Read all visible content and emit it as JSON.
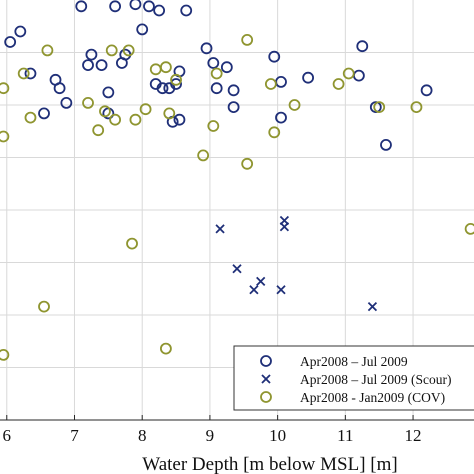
{
  "chart_data": {
    "type": "scatter",
    "xlabel": "Water Depth [m below MSL] [m]",
    "ylabel": "",
    "xlim": [
      5.9,
      12.9
    ],
    "ylim": [
      0,
      1
    ],
    "xticks": [
      6,
      7,
      8,
      9,
      10,
      11,
      12
    ],
    "grid": true,
    "legend_position": "bottom-right",
    "series": [
      {
        "name": "Apr2008 – Jul 2009",
        "marker": "circle",
        "color": "#1f2f78",
        "points": [
          [
            6.35,
            0.825
          ],
          [
            6.55,
            0.73
          ],
          [
            6.72,
            0.81
          ],
          [
            6.78,
            0.79
          ],
          [
            6.88,
            0.755
          ],
          [
            7.1,
            0.985
          ],
          [
            7.2,
            0.845
          ],
          [
            7.25,
            0.87
          ],
          [
            7.4,
            0.845
          ],
          [
            7.5,
            0.73
          ],
          [
            7.5,
            0.78
          ],
          [
            7.6,
            0.985
          ],
          [
            7.7,
            0.85
          ],
          [
            7.75,
            0.87
          ],
          [
            7.9,
            0.99
          ],
          [
            8.0,
            0.93
          ],
          [
            8.1,
            0.985
          ],
          [
            8.25,
            0.975
          ],
          [
            8.2,
            0.8
          ],
          [
            8.3,
            0.79
          ],
          [
            8.4,
            0.79
          ],
          [
            8.5,
            0.8
          ],
          [
            8.55,
            0.83
          ],
          [
            8.55,
            0.715
          ],
          [
            8.45,
            0.71
          ],
          [
            8.65,
            0.975
          ],
          [
            8.95,
            0.885
          ],
          [
            9.05,
            0.85
          ],
          [
            9.1,
            0.79
          ],
          [
            9.25,
            0.84
          ],
          [
            9.35,
            0.785
          ],
          [
            9.35,
            0.745
          ],
          [
            9.95,
            0.865
          ],
          [
            10.05,
            0.805
          ],
          [
            10.05,
            0.72
          ],
          [
            10.45,
            0.815
          ],
          [
            11.2,
            0.82
          ],
          [
            11.25,
            0.89
          ],
          [
            11.45,
            0.745
          ],
          [
            11.6,
            0.655
          ],
          [
            12.2,
            0.785
          ],
          [
            6.2,
            0.925
          ],
          [
            6.05,
            0.9
          ]
        ]
      },
      {
        "name": "Apr2008 – Jul 2009 (Scour)",
        "marker": "x",
        "color": "#1f2f78",
        "points": [
          [
            9.15,
            0.455
          ],
          [
            9.4,
            0.36
          ],
          [
            9.65,
            0.31
          ],
          [
            9.75,
            0.33
          ],
          [
            10.05,
            0.31
          ],
          [
            10.1,
            0.475
          ],
          [
            10.1,
            0.46
          ],
          [
            11.4,
            0.27
          ]
        ]
      },
      {
        "name": "Apr2008 - Jan2009 (COV)",
        "marker": "circle",
        "color": "#8f9530",
        "points": [
          [
            5.95,
            0.79
          ],
          [
            5.95,
            0.675
          ],
          [
            5.95,
            0.155
          ],
          [
            6.25,
            0.825
          ],
          [
            6.35,
            0.72
          ],
          [
            6.55,
            0.27
          ],
          [
            6.6,
            0.88
          ],
          [
            7.2,
            0.755
          ],
          [
            7.35,
            0.69
          ],
          [
            7.45,
            0.735
          ],
          [
            7.55,
            0.88
          ],
          [
            7.6,
            0.715
          ],
          [
            7.8,
            0.88
          ],
          [
            7.9,
            0.715
          ],
          [
            7.85,
            0.42
          ],
          [
            8.05,
            0.74
          ],
          [
            8.2,
            0.835
          ],
          [
            8.35,
            0.84
          ],
          [
            8.35,
            0.17
          ],
          [
            8.4,
            0.73
          ],
          [
            8.5,
            0.81
          ],
          [
            8.9,
            0.63
          ],
          [
            9.05,
            0.7
          ],
          [
            9.1,
            0.825
          ],
          [
            9.55,
            0.905
          ],
          [
            9.55,
            0.61
          ],
          [
            9.9,
            0.8
          ],
          [
            9.95,
            0.685
          ],
          [
            10.25,
            0.75
          ],
          [
            10.9,
            0.8
          ],
          [
            11.05,
            0.825
          ],
          [
            11.5,
            0.745
          ],
          [
            12.05,
            0.745
          ],
          [
            12.85,
            0.455
          ]
        ]
      }
    ]
  }
}
